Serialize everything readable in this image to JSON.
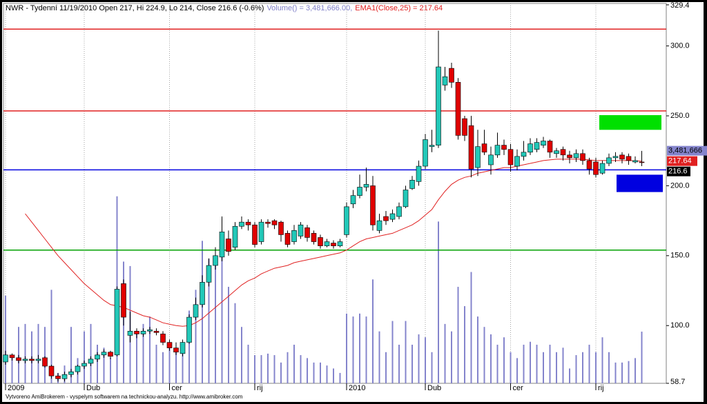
{
  "chart_data": {
    "type": "candlestick",
    "header": [
      {
        "text": "NWR - Tydenní 11/19/2010 Open 217, Hi 224.9, Lo 214, Close 216.6 (-0.6%)",
        "color": "#000000"
      },
      {
        "text": "Volume() = 3,481,666.00,",
        "color": "#8080c8"
      },
      {
        "text": "EMA1(Close,25) = 217.64",
        "color": "#e02020"
      }
    ],
    "footer": "Vytvoreno AmiBrokerem - vyspelym softwarem na technickou-analyzu. http://www.amibroker.com",
    "categories": [
      "2009",
      null,
      null,
      null,
      null,
      null,
      null,
      null,
      null,
      null,
      null,
      null,
      "Dub",
      null,
      null,
      null,
      null,
      null,
      null,
      null,
      null,
      null,
      null,
      null,
      null,
      "cer",
      null,
      null,
      null,
      null,
      null,
      null,
      null,
      null,
      null,
      null,
      null,
      null,
      "rij",
      null,
      null,
      null,
      null,
      null,
      null,
      null,
      null,
      null,
      null,
      null,
      null,
      null,
      "2010",
      null,
      null,
      null,
      null,
      null,
      null,
      null,
      null,
      null,
      null,
      null,
      "Dub",
      null,
      null,
      null,
      null,
      null,
      null,
      null,
      null,
      null,
      null,
      null,
      null,
      "cer",
      null,
      null,
      null,
      null,
      null,
      null,
      null,
      null,
      null,
      null,
      null,
      null,
      "rij",
      null,
      null,
      null,
      null,
      null,
      null,
      null
    ],
    "open": [
      74,
      79,
      77,
      75,
      76,
      75,
      77,
      71,
      64,
      62,
      65,
      67,
      71,
      73,
      76,
      79,
      81,
      79,
      130,
      93,
      96,
      94,
      96,
      96,
      94,
      88,
      84,
      80,
      88,
      106,
      115,
      131,
      143,
      149,
      162,
      156,
      171,
      174,
      172,
      160,
      174,
      175,
      174,
      166,
      160,
      164,
      170,
      166,
      163,
      157,
      159,
      157,
      165,
      187,
      193,
      199,
      200,
      168,
      178,
      176,
      178,
      185,
      198,
      203,
      214,
      228,
      229,
      272,
      284,
      274,
      248,
      243,
      213,
      230,
      215,
      222,
      229,
      226,
      214,
      221,
      224,
      226,
      229,
      232,
      223,
      226,
      222,
      220,
      223,
      218,
      217,
      209,
      216,
      220,
      222,
      221,
      217,
      217
    ],
    "high": [
      82,
      80,
      79,
      78,
      78,
      79,
      78,
      72,
      66,
      67,
      69,
      72,
      75,
      78,
      81,
      83,
      82,
      128,
      133,
      110,
      98,
      98,
      99,
      98,
      96,
      90,
      88,
      90,
      108,
      120,
      136,
      148,
      156,
      178,
      168,
      174,
      178,
      176,
      174,
      176,
      176,
      176,
      175,
      168,
      172,
      174,
      172,
      168,
      165,
      162,
      161,
      162,
      188,
      197,
      208,
      213,
      207,
      180,
      182,
      183,
      188,
      200,
      207,
      218,
      237,
      240,
      311,
      285,
      288,
      277,
      250,
      250,
      240,
      240,
      228,
      238,
      233,
      230,
      226,
      232,
      234,
      234,
      235,
      233,
      227,
      228,
      225,
      226,
      226,
      220,
      220,
      218,
      223,
      224,
      224,
      223,
      221,
      224.9
    ],
    "low": [
      72,
      75,
      73,
      73,
      73,
      73,
      70,
      62,
      60,
      60,
      63,
      65,
      69,
      71,
      74,
      77,
      76,
      78,
      100,
      88,
      91,
      92,
      94,
      93,
      86,
      82,
      79,
      78,
      87,
      104,
      113,
      128,
      140,
      146,
      150,
      154,
      169,
      168,
      156,
      158,
      170,
      169,
      160,
      156,
      158,
      162,
      160,
      158,
      155,
      156,
      155,
      156,
      163,
      184,
      191,
      196,
      168,
      166,
      172,
      174,
      176,
      184,
      197,
      200,
      212,
      224,
      227,
      268,
      270,
      233,
      232,
      206,
      207,
      222,
      208,
      220,
      222,
      210,
      211,
      218,
      222,
      224,
      227,
      220,
      220,
      218,
      216,
      217,
      215,
      208,
      206,
      208,
      214,
      217,
      216,
      215,
      216,
      214
    ],
    "close": [
      79,
      77,
      75,
      76,
      75,
      76,
      71,
      64,
      62,
      65,
      67,
      71,
      73,
      76,
      79,
      81,
      78,
      126,
      106,
      96,
      94,
      96,
      97,
      95,
      88,
      84,
      81,
      88,
      106,
      115,
      131,
      143,
      150,
      167,
      153,
      171,
      174,
      172,
      158,
      174,
      173,
      172,
      165,
      158,
      168,
      172,
      163,
      160,
      157,
      160,
      157,
      160,
      185,
      193,
      199,
      201,
      172,
      175,
      175,
      180,
      185,
      197,
      204,
      214,
      233,
      229,
      285,
      278,
      274,
      236,
      236,
      212,
      228,
      224,
      222,
      229,
      226,
      215,
      221,
      224,
      230,
      231,
      232,
      224,
      225,
      222,
      220,
      223,
      218,
      212,
      208,
      216,
      220,
      221,
      219,
      218,
      218,
      216.6
    ],
    "up_color": "#22c8b8",
    "down_color": "#e00000",
    "volume": {
      "color": "#8484cc",
      "ylim": [
        0,
        25500000
      ],
      "values": [
        5900000,
        1700000,
        3800000,
        4000000,
        3500000,
        4000000,
        3800000,
        6300000,
        700000,
        1200000,
        3800000,
        1700000,
        3500000,
        4000000,
        2600000,
        2400000,
        1700000,
        12600000,
        8200000,
        7900000,
        3500000,
        4000000,
        4500000,
        2600000,
        2100000,
        2600000,
        2100000,
        2600000,
        4900000,
        6300000,
        9600000,
        8400000,
        8200000,
        9300000,
        6500000,
        5400000,
        3800000,
        2600000,
        1900000,
        1900000,
        2000000,
        1900000,
        1400000,
        2100000,
        2600000,
        1900000,
        1700000,
        1400000,
        1400000,
        1200000,
        1000000,
        700000,
        4700000,
        4500000,
        4700000,
        4500000,
        7000000,
        3500000,
        2100000,
        4200000,
        2600000,
        4200000,
        2600000,
        3300000,
        3100000,
        2100000,
        10900000,
        4000000,
        3500000,
        6500000,
        5200000,
        7500000,
        4500000,
        3800000,
        3300000,
        2600000,
        3100000,
        2100000,
        1700000,
        2600000,
        2800000,
        2600000,
        2100000,
        2600000,
        2100000,
        2400000,
        1000000,
        1900000,
        2100000,
        2600000,
        2100000,
        3100000,
        2100000,
        1400000,
        1400000,
        1500000,
        1700000,
        3481666
      ]
    },
    "ema": {
      "color": "#e02020",
      "values": [
        null,
        null,
        null,
        180,
        174,
        168,
        162,
        156,
        150,
        145,
        140,
        135,
        130,
        126,
        122,
        118,
        115,
        114,
        113,
        111,
        109,
        107,
        106,
        104,
        102,
        101,
        100,
        99.5,
        100,
        102,
        105,
        109,
        113,
        117,
        121,
        125,
        129,
        132,
        134,
        137,
        139,
        141,
        142,
        143,
        145,
        146,
        147,
        148,
        149,
        150,
        151,
        152,
        154,
        157,
        160,
        162,
        163,
        164,
        165,
        166,
        168,
        170,
        172,
        175,
        179,
        183,
        190,
        196,
        201,
        204,
        206,
        207,
        209,
        210,
        211,
        212,
        213,
        213,
        214,
        215,
        216,
        217,
        218,
        218.5,
        219,
        219,
        219,
        219,
        219,
        218.5,
        218,
        218,
        218,
        218,
        218,
        218,
        217.8,
        217.64
      ]
    },
    "levels": [
      {
        "value": 312,
        "color": "#e02020"
      },
      {
        "value": 253.5,
        "color": "#e02020"
      },
      {
        "value": 211.4,
        "color": "#0000e0"
      },
      {
        "value": 154,
        "color": "#00a000"
      }
    ],
    "zones": [
      {
        "from": 240,
        "to": 250.5,
        "color": "#00e000"
      },
      {
        "from": 195.5,
        "to": 207.9,
        "color": "#0000e0"
      }
    ],
    "last_labels": {
      "volume": "3,481,666",
      "ema": "217.64",
      "close": "216.6"
    },
    "ylim": [
      58.7,
      329.4
    ],
    "yticks": [
      329.4,
      {
        "value": 300,
        "label": "300.0"
      },
      {
        "value": 250,
        "label": "250.0"
      },
      {
        "value": 200,
        "label": "200.0"
      },
      {
        "value": 150,
        "label": "150.0"
      },
      {
        "value": 100,
        "label": "100.0"
      },
      58.7
    ]
  }
}
